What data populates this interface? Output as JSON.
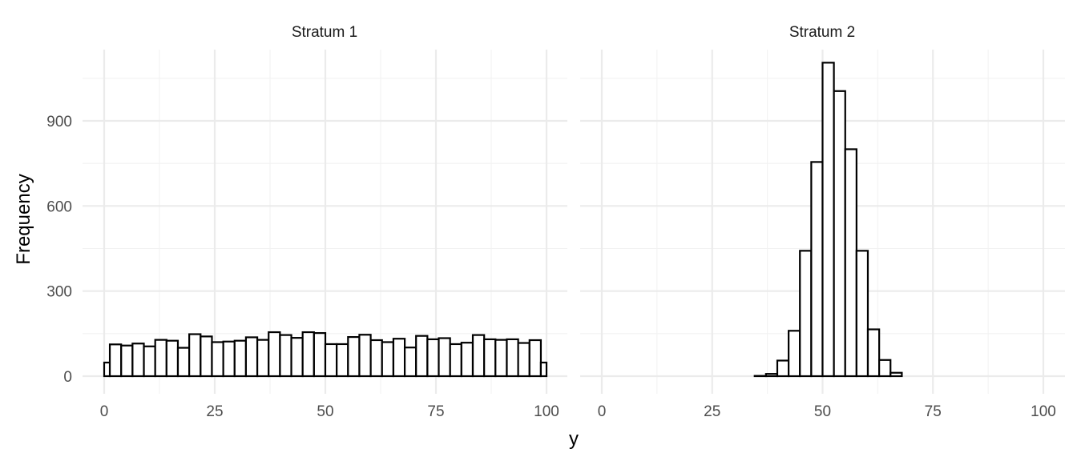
{
  "chart_data": {
    "type": "bar",
    "subtype": "faceted-histogram",
    "xlabel": "y",
    "ylabel": "Frequency",
    "xlim": [
      0,
      100
    ],
    "ylim": [
      0,
      1150
    ],
    "x_ticks": [
      0,
      25,
      50,
      75,
      100
    ],
    "y_ticks": [
      0,
      300,
      600,
      900
    ],
    "x_tick_labels": [
      "0",
      "25",
      "50",
      "75",
      "100"
    ],
    "y_tick_labels": [
      "0",
      "300",
      "600",
      "900"
    ],
    "grid": true,
    "bar_fill": "#ffffff",
    "bar_outline": "#000000",
    "bin_centers": [
      0.0,
      2.56,
      5.13,
      7.69,
      10.26,
      12.82,
      15.38,
      17.95,
      20.51,
      23.08,
      25.64,
      28.21,
      30.77,
      33.33,
      35.9,
      38.46,
      41.03,
      43.59,
      46.15,
      48.72,
      51.28,
      53.85,
      56.41,
      58.97,
      61.54,
      64.1,
      66.67,
      69.23,
      71.79,
      74.36,
      76.92,
      79.49,
      82.05,
      84.62,
      87.18,
      89.74,
      92.31,
      94.87,
      97.44,
      100.0
    ],
    "bin_width": 2.564,
    "facets": [
      {
        "label": "Stratum 1",
        "values": [
          48,
          112,
          108,
          115,
          105,
          128,
          125,
          100,
          148,
          140,
          120,
          122,
          125,
          137,
          128,
          155,
          145,
          135,
          155,
          152,
          113,
          113,
          138,
          146,
          127,
          120,
          132,
          101,
          142,
          130,
          134,
          113,
          118,
          145,
          130,
          128,
          130,
          117,
          127,
          48
        ]
      },
      {
        "label": "Stratum 2",
        "values": [
          0,
          0,
          0,
          0,
          0,
          0,
          0,
          0,
          0,
          0,
          0,
          0,
          0,
          0,
          1,
          8,
          55,
          160,
          442,
          755,
          1105,
          1005,
          800,
          442,
          165,
          57,
          12,
          0,
          0,
          0,
          0,
          0,
          0,
          0,
          0,
          0,
          0,
          0,
          0,
          0
        ]
      }
    ]
  }
}
